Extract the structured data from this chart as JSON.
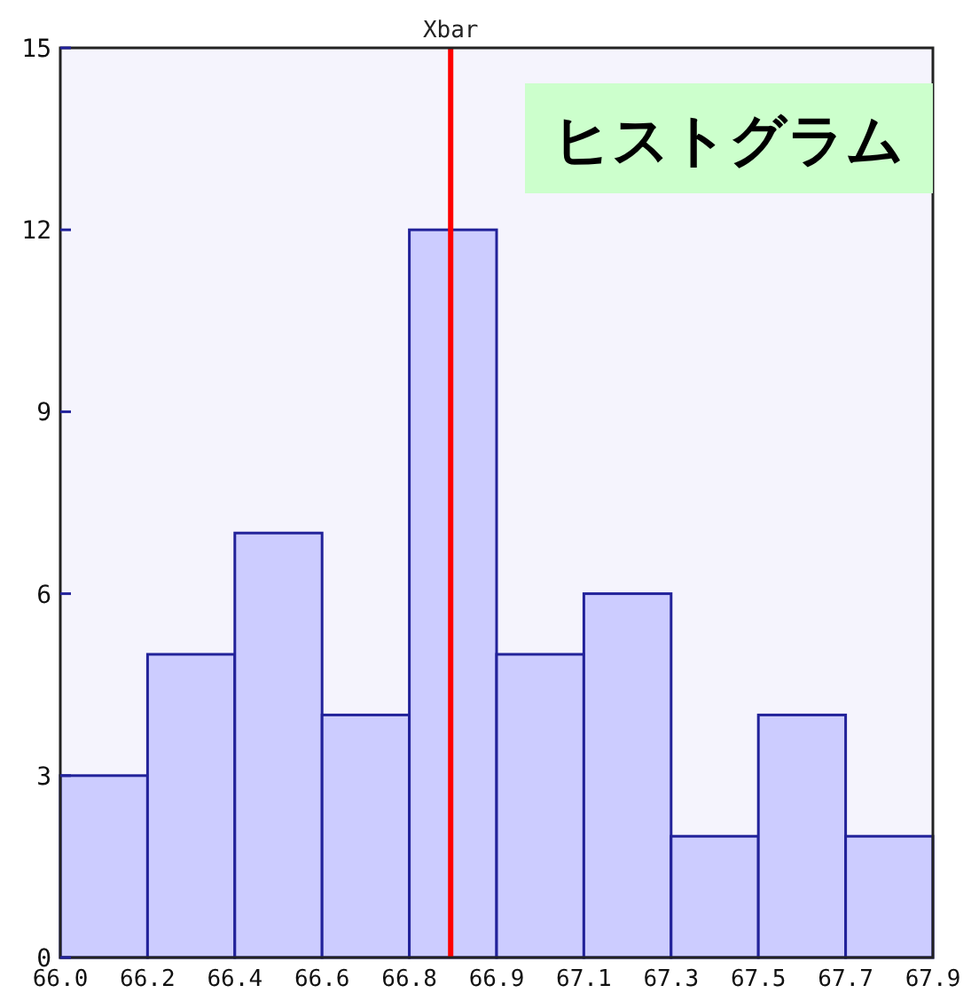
{
  "chart_data": {
    "type": "histogram",
    "title": "ヒストグラム",
    "bins": [
      66.0,
      66.19,
      66.38,
      66.57,
      66.76,
      66.95,
      67.14,
      67.33,
      67.52,
      67.71,
      67.9
    ],
    "values": [
      3,
      5,
      7,
      4,
      12,
      5,
      6,
      2,
      4,
      2
    ],
    "color": "#ccccff",
    "xlim": [
      66.0,
      67.9
    ],
    "ylim": [
      0,
      15
    ],
    "xticks": [
      {
        "value": 66.0,
        "label": "66.0"
      },
      {
        "value": 66.19,
        "label": "66.2"
      },
      {
        "value": 66.38,
        "label": "66.4"
      },
      {
        "value": 66.57,
        "label": "66.6"
      },
      {
        "value": 66.76,
        "label": "66.8"
      },
      {
        "value": 66.95,
        "label": "66.9"
      },
      {
        "value": 67.14,
        "label": "67.1"
      },
      {
        "value": 67.33,
        "label": "67.3"
      },
      {
        "value": 67.52,
        "label": "67.5"
      },
      {
        "value": 67.71,
        "label": "67.7"
      },
      {
        "value": 67.9,
        "label": "67.9"
      }
    ],
    "yticks": [
      0,
      3,
      6,
      9,
      12,
      15
    ],
    "ref_lines": [
      {
        "axis": "x",
        "value": 66.85,
        "label": "Xbar",
        "color": "#ff0000"
      }
    ]
  }
}
